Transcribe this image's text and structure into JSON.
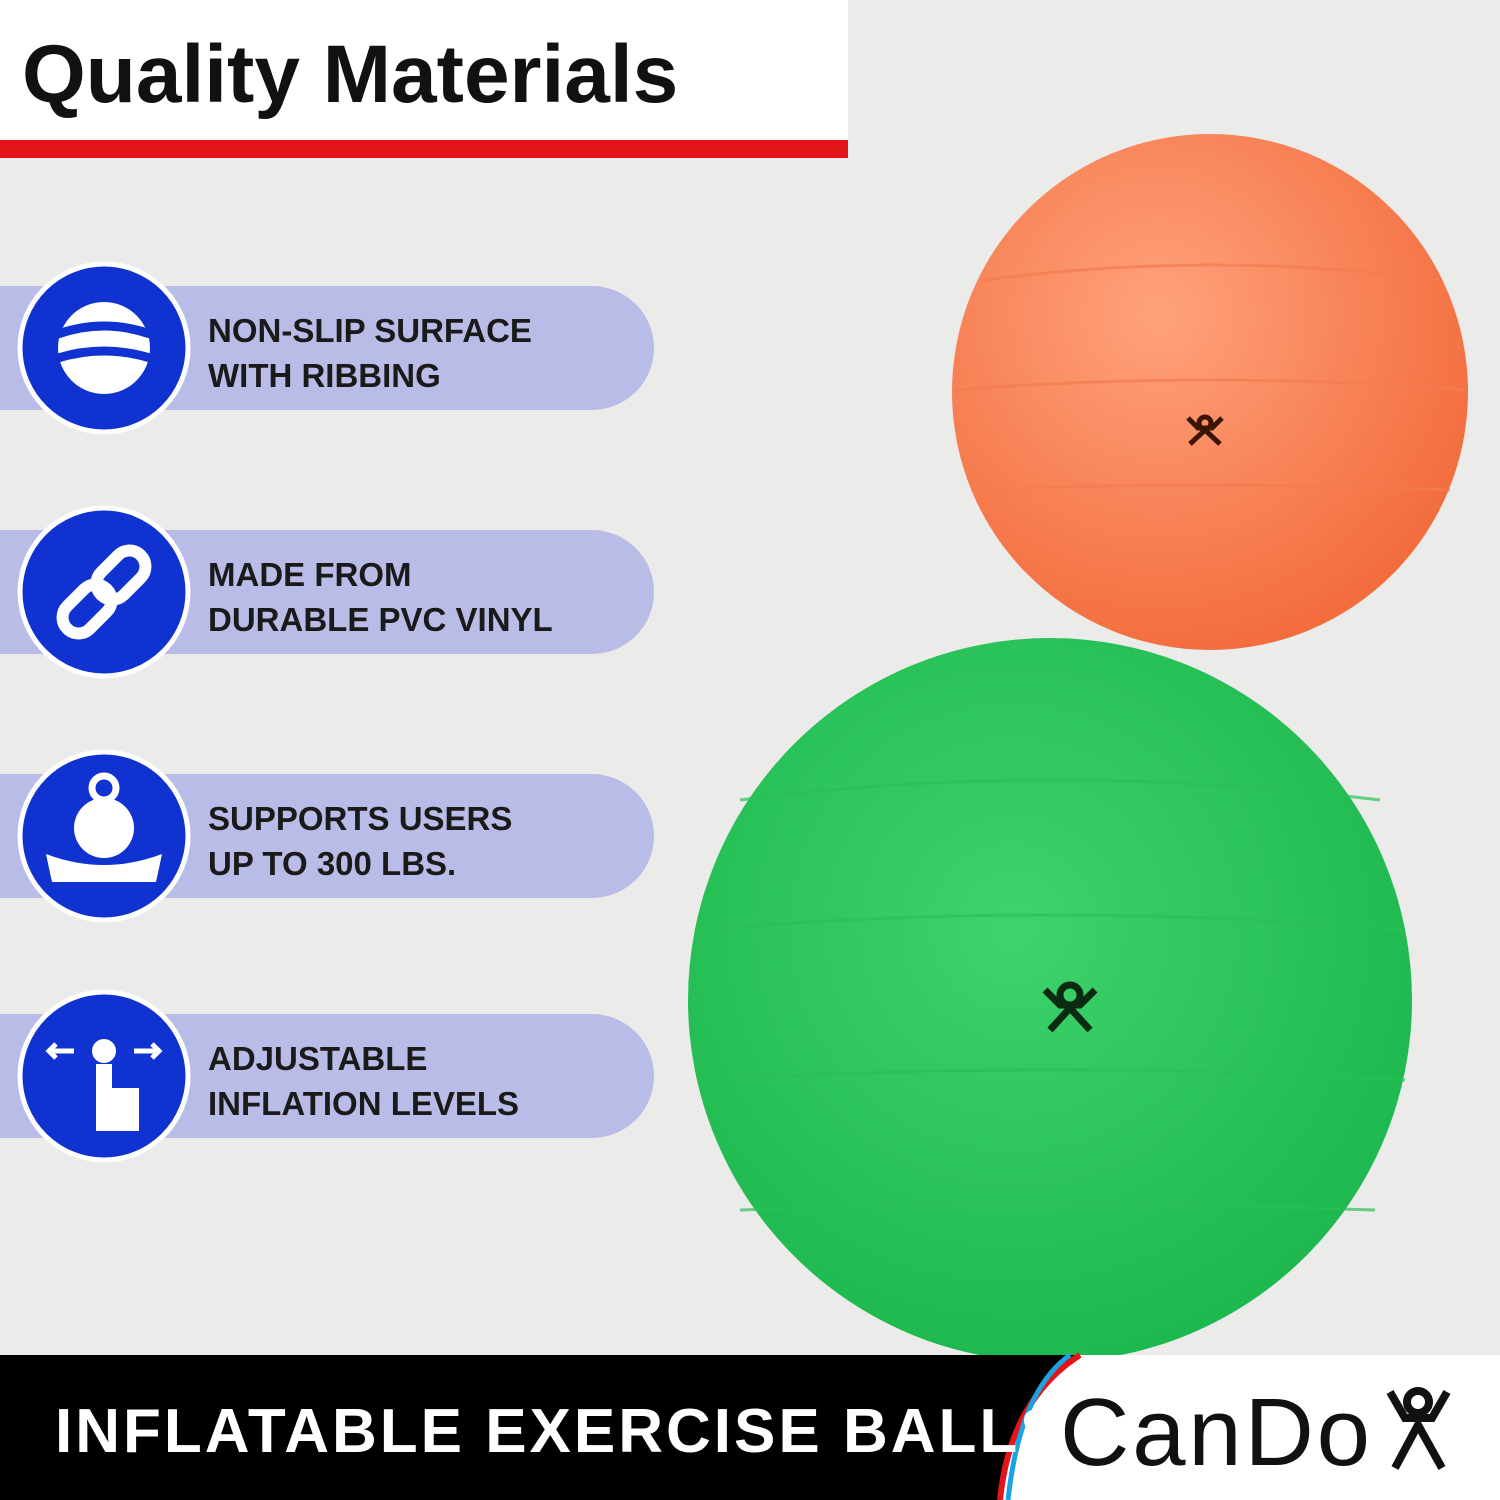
{
  "header": {
    "title": "Quality Materials"
  },
  "features": [
    {
      "lines": [
        "NON-SLIP SURFACE",
        "WITH RIBBING"
      ]
    },
    {
      "lines": [
        "MADE FROM",
        "DURABLE PVC VINYL"
      ]
    },
    {
      "lines": [
        "SUPPORTS USERS",
        "UP TO 300 LBS."
      ]
    },
    {
      "lines": [
        "ADJUSTABLE",
        "INFLATION LEVELS"
      ]
    }
  ],
  "footer": {
    "title": "INFLATABLE EXERCISE BALLS",
    "brand": "CanDo"
  }
}
